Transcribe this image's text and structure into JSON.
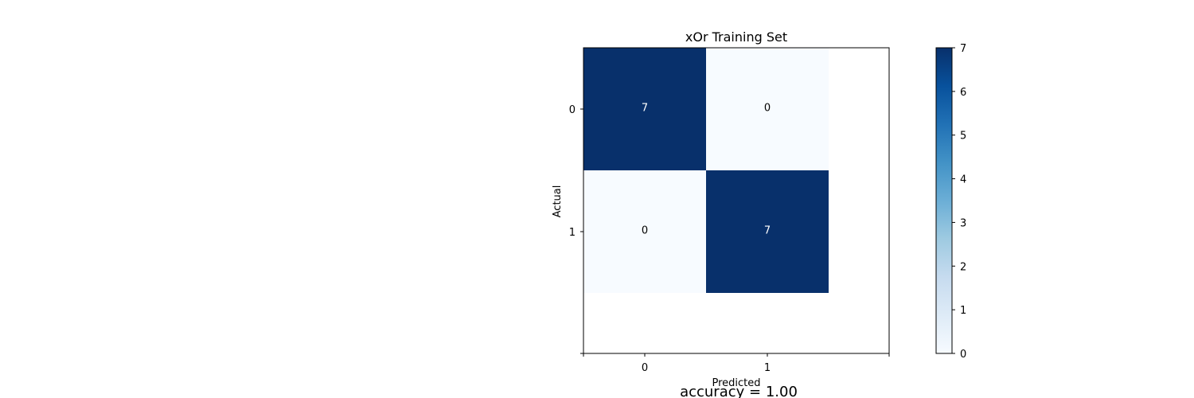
{
  "chart_data": {
    "type": "heatmap",
    "title": "xOr Training Set",
    "xlabel": "Predicted",
    "ylabel": "Actual",
    "x_categories": [
      "0",
      "1"
    ],
    "y_categories": [
      "0",
      "1"
    ],
    "matrix": [
      [
        7,
        0
      ],
      [
        0,
        7
      ]
    ],
    "cell_labels": [
      [
        "7",
        "0"
      ],
      [
        "0",
        "7"
      ]
    ],
    "colormap": "Blues",
    "color_low": "#f7fbff",
    "color_high": "#08306b",
    "colorbar": {
      "range": [
        0,
        7
      ],
      "ticks": [
        "0",
        "1",
        "2",
        "3",
        "4",
        "5",
        "6",
        "7"
      ]
    },
    "grid": false,
    "footer_text": "accuracy = 1.00"
  }
}
